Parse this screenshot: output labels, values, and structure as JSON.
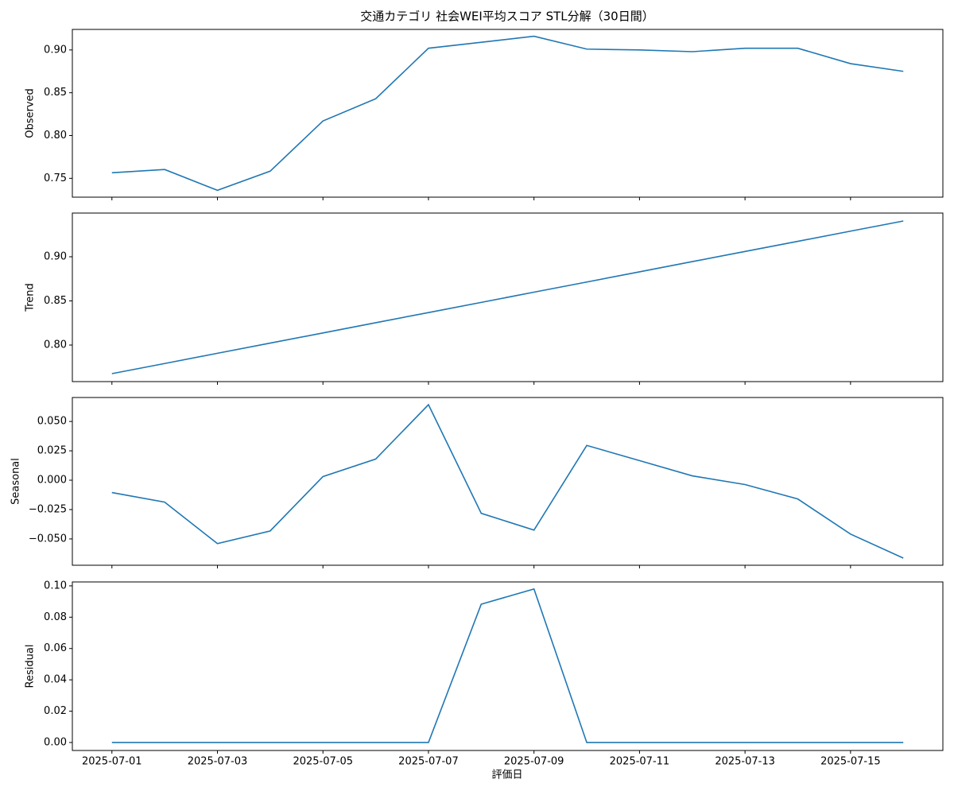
{
  "chart_data": [
    {
      "type": "line",
      "title": "交通カテゴリ 社会WEI平均スコア STL分解（30日間）",
      "ylabel": "Observed",
      "x": [
        "2025-07-01",
        "2025-07-02",
        "2025-07-03",
        "2025-07-04",
        "2025-07-05",
        "2025-07-06",
        "2025-07-07",
        "2025-07-08",
        "2025-07-09",
        "2025-07-10",
        "2025-07-11",
        "2025-07-12",
        "2025-07-13",
        "2025-07-14",
        "2025-07-15",
        "2025-07-16"
      ],
      "series": [
        {
          "name": "Observed",
          "color": "#1f77b4",
          "values": [
            0.7565,
            0.7603,
            0.736,
            0.7584,
            0.817,
            0.843,
            0.902,
            0.909,
            0.916,
            0.901,
            0.9,
            0.898,
            0.902,
            0.902,
            0.884,
            0.875
          ]
        }
      ],
      "ylim": [
        0.728,
        0.924
      ],
      "yticks": [
        {
          "value": 0.75,
          "label": "0.75"
        },
        {
          "value": 0.8,
          "label": "0.80"
        },
        {
          "value": 0.85,
          "label": "0.85"
        },
        {
          "value": 0.9,
          "label": "0.90"
        }
      ]
    },
    {
      "type": "line",
      "ylabel": "Trend",
      "x": [
        "2025-07-01",
        "2025-07-02",
        "2025-07-03",
        "2025-07-04",
        "2025-07-05",
        "2025-07-06",
        "2025-07-07",
        "2025-07-08",
        "2025-07-09",
        "2025-07-10",
        "2025-07-11",
        "2025-07-12",
        "2025-07-13",
        "2025-07-14",
        "2025-07-15",
        "2025-07-16"
      ],
      "series": [
        {
          "name": "Trend",
          "color": "#1f77b4",
          "values": [
            0.7676,
            0.7791,
            0.7907,
            0.8022,
            0.8137,
            0.8253,
            0.8368,
            0.8483,
            0.8599,
            0.8714,
            0.8829,
            0.8945,
            0.906,
            0.9175,
            0.929,
            0.9405
          ]
        }
      ],
      "ylim": [
        0.7586,
        0.9495
      ],
      "yticks": [
        {
          "value": 0.8,
          "label": "0.80"
        },
        {
          "value": 0.85,
          "label": "0.85"
        },
        {
          "value": 0.9,
          "label": "0.90"
        }
      ]
    },
    {
      "type": "line",
      "ylabel": "Seasonal",
      "x": [
        "2025-07-01",
        "2025-07-02",
        "2025-07-03",
        "2025-07-04",
        "2025-07-05",
        "2025-07-06",
        "2025-07-07",
        "2025-07-08",
        "2025-07-09",
        "2025-07-10",
        "2025-07-11",
        "2025-07-12",
        "2025-07-13",
        "2025-07-14",
        "2025-07-15",
        "2025-07-16"
      ],
      "series": [
        {
          "name": "Seasonal",
          "color": "#1f77b4",
          "values": [
            -0.0105,
            -0.0187,
            -0.054,
            -0.0432,
            0.0031,
            0.018,
            0.0643,
            -0.0282,
            -0.0425,
            0.0296,
            0.0167,
            0.0037,
            -0.0037,
            -0.016,
            -0.0459,
            -0.0663
          ]
        }
      ],
      "ylim": [
        -0.0724,
        0.0704
      ],
      "yticks": [
        {
          "value": -0.05,
          "label": "−0.050"
        },
        {
          "value": -0.025,
          "label": "−0.025"
        },
        {
          "value": 0,
          "label": "0.000"
        },
        {
          "value": 0.025,
          "label": "0.025"
        },
        {
          "value": 0.05,
          "label": "0.050"
        }
      ]
    },
    {
      "type": "line",
      "ylabel": "Residual",
      "xlabel": "評価日",
      "x": [
        "2025-07-01",
        "2025-07-02",
        "2025-07-03",
        "2025-07-04",
        "2025-07-05",
        "2025-07-06",
        "2025-07-07",
        "2025-07-08",
        "2025-07-09",
        "2025-07-10",
        "2025-07-11",
        "2025-07-12",
        "2025-07-13",
        "2025-07-14",
        "2025-07-15",
        "2025-07-16"
      ],
      "series": [
        {
          "name": "Residual",
          "color": "#1f77b4",
          "values": [
            0,
            0,
            0,
            0,
            0,
            0,
            0,
            0.0883,
            0.098,
            0,
            0,
            0,
            0,
            0,
            0,
            0
          ]
        }
      ],
      "ylim": [
        -0.0051,
        0.1025
      ],
      "yticks": [
        {
          "value": 0,
          "label": "0.00"
        },
        {
          "value": 0.02,
          "label": "0.02"
        },
        {
          "value": 0.04,
          "label": "0.04"
        },
        {
          "value": 0.06,
          "label": "0.06"
        },
        {
          "value": 0.08,
          "label": "0.08"
        },
        {
          "value": 0.1,
          "label": "0.10"
        }
      ],
      "xticks": [
        "2025-07-01",
        "2025-07-03",
        "2025-07-05",
        "2025-07-07",
        "2025-07-09",
        "2025-07-11",
        "2025-07-13",
        "2025-07-15"
      ]
    }
  ]
}
